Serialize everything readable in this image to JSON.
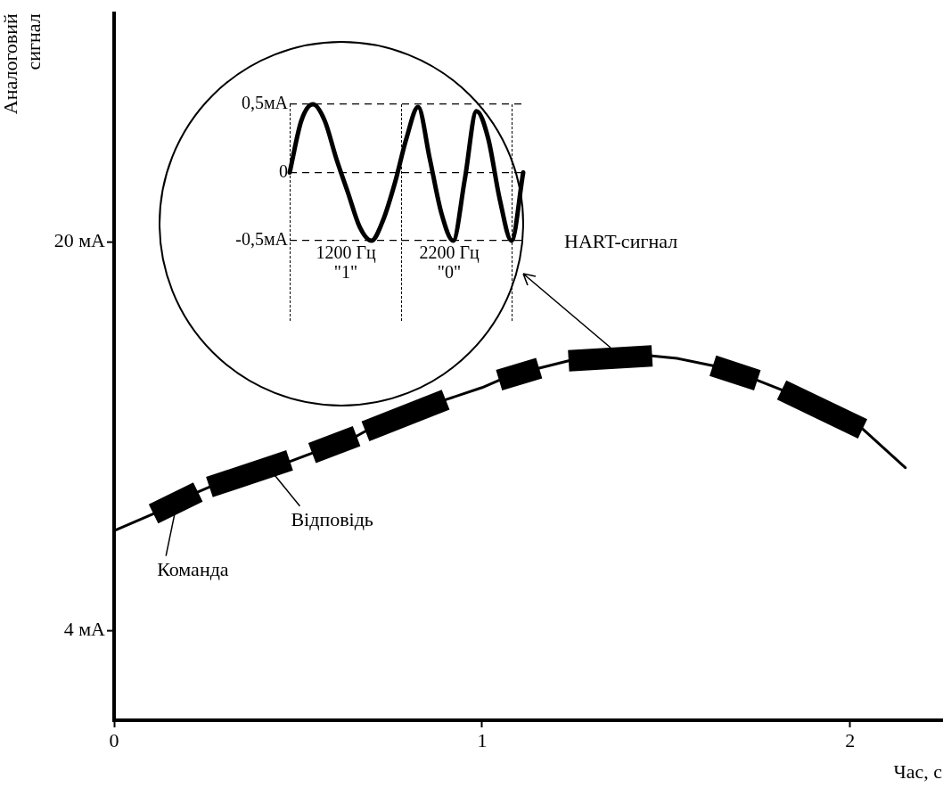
{
  "chart_data": [
    {
      "type": "line",
      "xlabel": "Час, с",
      "ylabel": "Аналоговий сигнал",
      "xlim": [
        0,
        2.25
      ],
      "xticks": [
        0,
        1,
        2
      ],
      "ylim": [
        0.3,
        29.4
      ],
      "yticks": [
        {
          "value": 4,
          "label": "4 мА"
        },
        {
          "value": 20,
          "label": "20 мА"
        }
      ],
      "grid": false,
      "marker": "none",
      "series": [
        {
          "color": "#000000",
          "x": [
            0,
            0.107,
            0.228,
            0.259,
            0.416,
            0.538,
            0.659,
            0.683,
            0.901,
            1.0,
            1.046,
            1.155,
            1.235,
            1.385,
            1.462,
            1.53,
            1.627,
            1.748,
            1.814,
            2.0,
            2.034,
            2.15
          ],
          "values": [
            8.1,
            8.8,
            9.7,
            9.9,
            10.6,
            11.3,
            12.0,
            12.2,
            13.5,
            14.0,
            14.3,
            14.8,
            15.1,
            15.3,
            15.3,
            15.2,
            14.9,
            14.3,
            13.9,
            12.6,
            12.3,
            10.7
          ]
        },
        {
          "color": "#000000",
          "x": [
            0.107,
            0.228,
            0.24,
            0.259,
            0.477,
            0.51,
            0.538,
            0.659,
            0.67,
            0.683,
            0.901,
            0.97,
            1.046,
            1.155,
            1.19,
            1.235,
            1.462,
            1.54,
            1.627,
            1.748,
            1.78,
            1.814,
            2.034
          ],
          "values": [
            8.8,
            9.7,
            null,
            9.9,
            11.0,
            null,
            11.3,
            12.0,
            null,
            12.2,
            13.5,
            null,
            14.3,
            14.8,
            null,
            15.1,
            15.3,
            null,
            14.9,
            14.3,
            null,
            13.9,
            12.3
          ]
        }
      ],
      "annotations": [
        "HART-сигнал",
        {
          "text": "Відповідь",
          "x": 0.42,
          "y": 10.7
        },
        {
          "text": "Команда",
          "x": 0.17,
          "y": 9.2
        }
      ]
    },
    {
      "type": "line",
      "categories": [
        null,
        null,
        null,
        null,
        null,
        null,
        null,
        null,
        null,
        null,
        null,
        null,
        null,
        null,
        null,
        null,
        null,
        null,
        null,
        null,
        null
      ],
      "ylim": [
        -0.5,
        0.5
      ],
      "yticks": [
        {
          "value": 0.5,
          "label": "0,5мА"
        },
        0,
        {
          "value": -0.5,
          "label": "-0,5мА"
        }
      ],
      "grid": "y",
      "marker": "none",
      "annotations": [
        "1200 Гц",
        "\"1\"",
        "2200 Гц",
        "\"0\""
      ],
      "series": [
        {
          "color": "#000000",
          "values": [
            0,
            0.38,
            0.5,
            0.38,
            0.1,
            -0.15,
            -0.4,
            -0.5,
            -0.35,
            -0.08,
            0.25,
            0.48,
            0.1,
            -0.3,
            -0.5,
            -0.05,
            0.45,
            0.25,
            -0.2,
            -0.5,
            0
          ]
        }
      ]
    }
  ]
}
